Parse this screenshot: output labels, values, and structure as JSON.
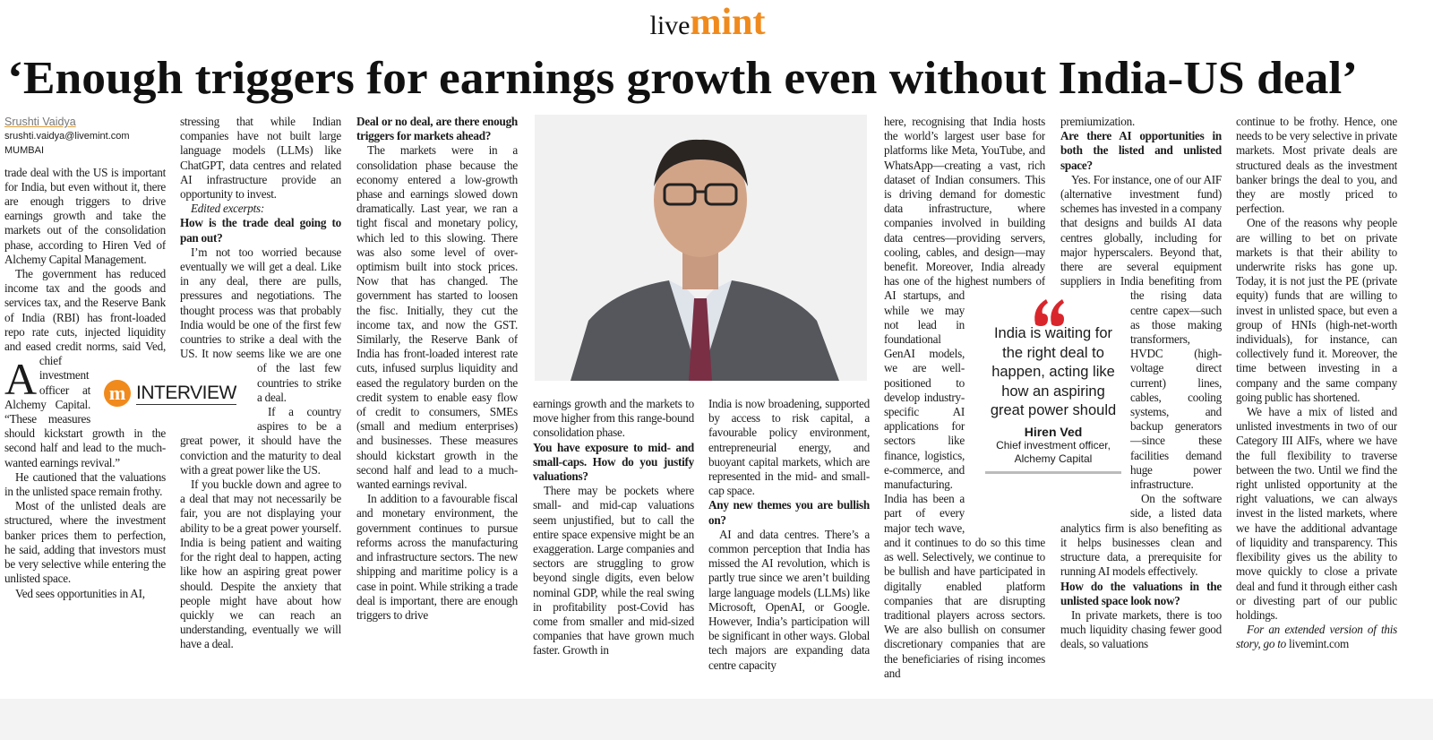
{
  "masthead": {
    "live": "live",
    "mint": "mint"
  },
  "headline": "‘Enough triggers for earnings growth even without India-US deal’",
  "byline": {
    "author": "Srushti Vaidya",
    "email": "srushti.vaidya@livemint.com",
    "location": "MUMBAI"
  },
  "interview_badge": {
    "icon": "m",
    "label": "INTERVIEW"
  },
  "pull_quote": {
    "text": "India is waiting for the right deal to happen, acting like how an aspiring great power should",
    "name": "Hiren Ved",
    "role": "Chief investment officer, Alchemy Capital"
  },
  "columns": [
    {
      "blocks": [
        {
          "paragraph": "A trade deal with the US is important for India, but even without it, there are enough triggers to drive earnings growth and take the markets out of the consolidation phase, according to Hiren Ved of Alchemy Capital Management."
        },
        {
          "paragraph": "The government has reduced income tax and the goods and services tax, and the Reserve Bank of India (RBI) has front-loaded repo rate cuts, injected liquidity and eased credit norms, said Ved, chief investment officer at Alchemy Capital. “These measures should kickstart growth in the second half and lead to the much-wanted earnings revival.”"
        },
        {
          "paragraph": "He cautioned that the valuations in the unlisted space remain frothy."
        },
        {
          "paragraph": "Most of the unlisted deals are structured, where the investment banker prices them to perfection, he said, adding that investors must be very selective while entering the unlisted space."
        },
        {
          "paragraph": "Ved sees opportunities in AI,"
        }
      ]
    },
    {
      "blocks": [
        {
          "continued": "stressing that while Indian companies have not built large language models (LLMs) like ChatGPT, data centres and related AI infrastructure provide an opportunity to invest."
        },
        {
          "note": "Edited excerpts:"
        },
        {
          "question": "How is the trade deal going to pan out?"
        },
        {
          "paragraph": "I’m not too worried because eventually we will get a deal. Like in any deal, there are pulls, pressures and negotiations. The thought process was that probably India would be one of the first few countries to strike a deal with the US. It now seems like we are one of the last few countries to strike a deal."
        },
        {
          "paragraph": "If a country aspires to be a great power, it should have the conviction and the maturity to deal with a great power like the US."
        },
        {
          "paragraph": "If you buckle down and agree to a deal that may not necessarily be fair, you are not displaying your ability to be a great power yourself. India is being patient and waiting for the right deal to happen, acting like how an aspiring great power should. Despite the anxiety that people might have about how quickly we can reach an understanding, eventually we will have a deal."
        }
      ]
    },
    {
      "blocks": [
        {
          "question": "Deal or no deal, are there enough triggers for markets ahead?"
        },
        {
          "paragraph": "The markets were in a consolidation phase because the economy entered a low-growth phase and earnings slowed down dramatically. Last year, we ran a tight fiscal and monetary policy, which led to this slowing. There was also some level of over-optimism built into stock prices. Now that has changed. The government has started to loosen the fisc. Initially, they cut the income tax, and now the GST. Similarly, the Reserve Bank of India has front-loaded interest rate cuts, infused surplus liquidity and eased the regulatory burden on the credit system to enable easy flow of credit to consumers, SMEs (small and medium enterprises) and businesses. These measures should kickstart growth in the second half and lead to a much-wanted earnings revival."
        },
        {
          "paragraph": "In addition to a favourable fiscal and monetary environment, the government continues to pursue reforms across the manufacturing and infrastructure sectors. The new shipping and maritime policy is a case in point. While striking a trade deal is important, there are enough triggers to drive"
        }
      ]
    },
    {
      "blocks": [
        {
          "continued": "earnings growth and the markets to move higher from this range-bound consolidation phase."
        },
        {
          "question": "You have exposure to mid- and small-caps. How do you justify valuations?"
        },
        {
          "paragraph": "There may be pockets where small- and mid-cap valuations seem unjustified, but to call the entire space expensive might be an exaggeration. Large companies and sectors are struggling to grow beyond single digits, even below nominal GDP, while the real swing in profitability post-Covid has come from smaller and mid-sized companies that have grown much faster. Growth in"
        }
      ]
    },
    {
      "blocks": [
        {
          "continued": "India is now broadening, supported by access to risk capital, a favourable policy environment, entrepreneurial energy, and buoyant capital markets, which are represented in the mid- and small-cap space."
        },
        {
          "question": "Any new themes you are bullish on?"
        },
        {
          "paragraph": "AI and data centres. There’s a common perception that India has missed the AI revolution, which is partly true since we aren’t building large language models (LLMs) like Microsoft, OpenAI, or Google. However, India’s participation will be significant in other ways. Global tech majors are expanding data centre capacity"
        }
      ]
    },
    {
      "blocks": [
        {
          "continued": "here, recognising that India hosts the world’s largest user base for platforms like Meta, YouTube, and WhatsApp—creating a vast, rich dataset of Indian consumers. This is driving demand for domestic data infrastructure, where companies involved in building data centres—providing servers, cooling, cables, and design—may benefit. Moreover, India already has one of the highest numbers of AI startups, and while we may not lead in foundational GenAI models, we are well-positioned to develop industry-specific AI applications for sectors like finance, logistics, e-commerce, and manufacturing. India has been a part of every major tech wave, and it continues to do so this time as well. Selectively, we continue to be bullish and have participated in digitally enabled platform companies that are disrupting traditional players across sectors. We are also bullish on consumer discretionary companies that are the beneficiaries of rising incomes and"
        }
      ]
    },
    {
      "blocks": [
        {
          "continued": "premiumization."
        },
        {
          "question": "Are there AI opportunities in both the listed and unlisted space?"
        },
        {
          "paragraph": "Yes. For instance, one of our AIF (alternative investment fund) schemes has invested in a company that designs and builds AI data centres globally, including for major hyperscalers. Beyond that, there are several equipment suppliers in India benefiting from the rising data centre capex—such as those making transformers, HVDC (high-voltage direct current) lines, cables, cooling systems, and backup generators—since these facilities demand huge power infrastructure."
        },
        {
          "paragraph": "On the software side, a listed data analytics firm is also benefiting as it helps businesses clean and structure data, a prerequisite for running AI models effectively."
        },
        {
          "question": "How do the valuations in the unlisted space look now?"
        },
        {
          "paragraph": "In private markets, there is too much liquidity chasing fewer good deals, so valuations"
        }
      ]
    },
    {
      "blocks": [
        {
          "continued": "continue to be frothy. Hence, one needs to be very selective in private markets. Most private deals are structured deals as the investment banker brings the deal to you, and they are mostly priced to perfection."
        },
        {
          "paragraph": "One of the reasons why people are willing to bet on private markets is that their ability to underwrite risks has gone up. Today, it is not just the PE (private equity) funds that are willing to invest in unlisted space, but even a group of HNIs (high-net-worth individuals), for instance, can collectively fund it. Moreover, the time between investing in a company and the same company going public has shortened."
        },
        {
          "paragraph": "We have a mix of listed and unlisted investments in two of our Category III AIFs, where we have the full flexibility to traverse between the two. Until we find the right unlisted opportunity at the right valuations, we can always invest in the listed markets, where we have the additional advantage of liquidity and transparency. This flexibility gives us the ability to move quickly to close a private deal and fund it through either cash or divesting part of our public holdings."
        },
        {
          "note": "For an extended version of this story, go to",
          "link": "livemint.com"
        }
      ]
    }
  ]
}
